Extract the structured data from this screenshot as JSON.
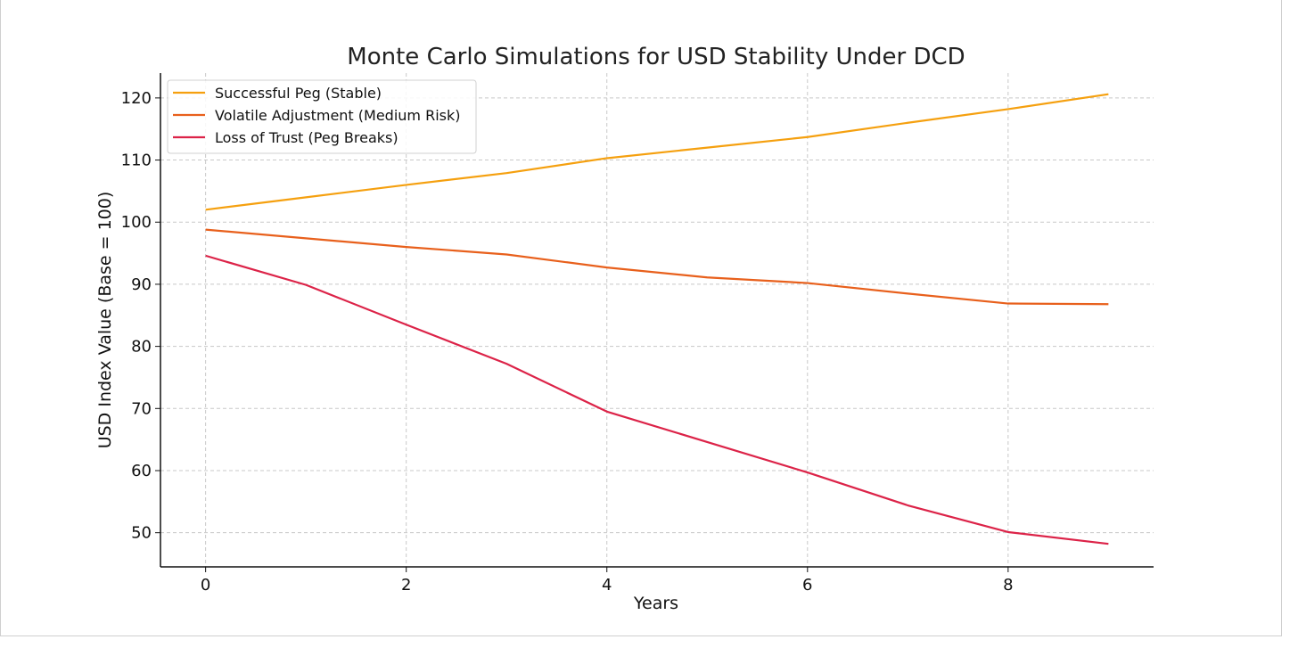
{
  "chart_data": {
    "type": "line",
    "title": "Monte Carlo Simulations for USD Stability Under DCD",
    "xlabel": "Years",
    "ylabel": "USD Index Value (Base = 100)",
    "xlim": [
      -0.45,
      9.45
    ],
    "ylim": [
      44.5,
      124
    ],
    "xticks": [
      0,
      2,
      4,
      6,
      8
    ],
    "yticks": [
      50,
      60,
      70,
      80,
      90,
      100,
      110,
      120
    ],
    "grid": true,
    "legend_position": "top-left",
    "x": [
      0,
      1,
      2,
      3,
      4,
      5,
      6,
      7,
      8,
      9
    ],
    "series": [
      {
        "name": "Successful Peg (Stable)",
        "color": "#f5a00f",
        "values": [
          102.0,
          104.0,
          106.0,
          107.9,
          110.3,
          112.0,
          113.7,
          116.0,
          118.2,
          120.6
        ]
      },
      {
        "name": "Volatile Adjustment (Medium Risk)",
        "color": "#e8601c",
        "values": [
          98.8,
          97.4,
          96.0,
          94.8,
          92.7,
          91.1,
          90.2,
          88.5,
          86.9,
          86.8
        ]
      },
      {
        "name": "Loss of Trust (Peg Breaks)",
        "color": "#dc2348",
        "values": [
          94.6,
          89.9,
          83.5,
          77.2,
          69.5,
          64.6,
          59.7,
          54.4,
          50.1,
          48.2
        ]
      }
    ]
  }
}
